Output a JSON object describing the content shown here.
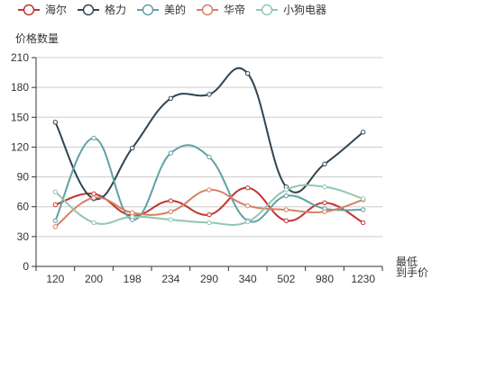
{
  "chart_data": {
    "type": "line",
    "smooth": true,
    "ylabel": "价格数量",
    "xlabel_lines": [
      "最低",
      "到手价"
    ],
    "categories": [
      "120",
      "200",
      "198",
      "234",
      "290",
      "340",
      "502",
      "980",
      "1230"
    ],
    "ylim": [
      0,
      210
    ],
    "yticks": [
      0,
      30,
      60,
      90,
      120,
      150,
      180,
      210
    ],
    "grid": "horizontal",
    "legend_position": "top-left",
    "series": [
      {
        "name": "海尔",
        "color": "#c23531",
        "values": [
          62,
          73,
          51,
          66,
          52,
          79,
          46,
          64,
          44
        ]
      },
      {
        "name": "格力",
        "color": "#2f4554",
        "values": [
          145,
          68,
          119,
          169,
          173,
          194,
          80,
          103,
          135
        ]
      },
      {
        "name": "美的",
        "color": "#61a0a8",
        "values": [
          46,
          129,
          47,
          114,
          110,
          46,
          71,
          58,
          57
        ]
      },
      {
        "name": "华帝",
        "color": "#d48265",
        "values": [
          40,
          69,
          54,
          55,
          77,
          61,
          57,
          55,
          67
        ]
      },
      {
        "name": "小狗电器",
        "color": "#91c7ae",
        "values": [
          75,
          44,
          50,
          47,
          44,
          45,
          77,
          80,
          68
        ]
      }
    ]
  }
}
